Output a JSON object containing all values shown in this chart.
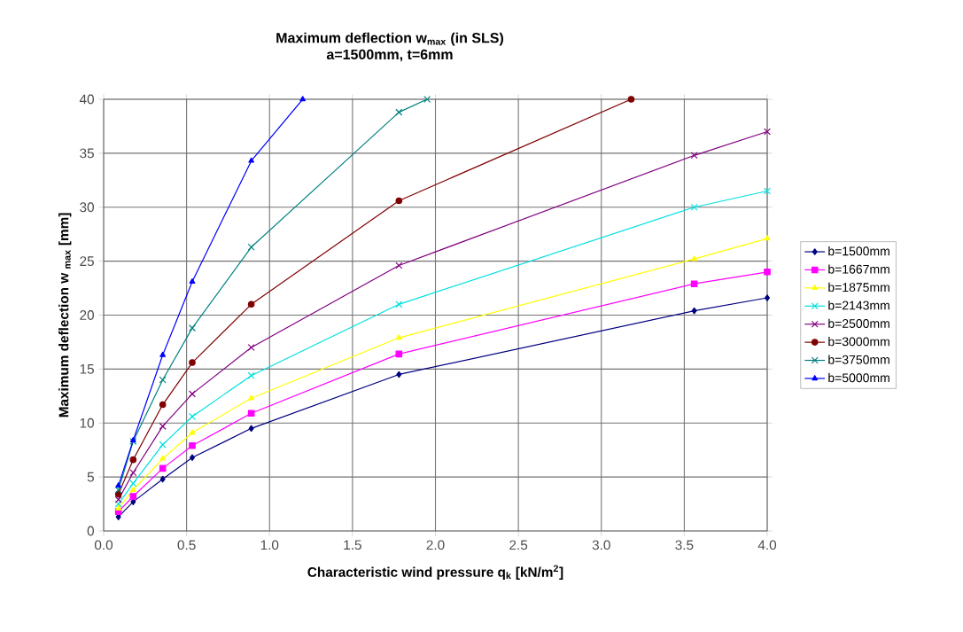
{
  "chart_data": {
    "type": "line",
    "title": "Maximum deflection w$_{max}$ (in SLS)",
    "subtitle": "a=1500mm, t=6mm",
    "xlabel": "Characteristic wind pressure q$_{k}$ [kN/m$^{2}$]",
    "ylabel": "Maximum deflection w $_{max}$ [mm]",
    "xlim": [
      0,
      4
    ],
    "ylim": [
      0,
      40
    ],
    "xticks": [
      {
        "value": 0,
        "label": "0.0"
      },
      {
        "value": 0.5,
        "label": "0.5"
      },
      {
        "value": 1,
        "label": "1.0"
      },
      {
        "value": 1.5,
        "label": "1.5"
      },
      {
        "value": 2,
        "label": "2.0"
      },
      {
        "value": 2.5,
        "label": "2.5"
      },
      {
        "value": 3,
        "label": "3.0"
      },
      {
        "value": 3.5,
        "label": "3.5"
      },
      {
        "value": 4,
        "label": "4.0"
      }
    ],
    "yticks": [
      0,
      5,
      10,
      15,
      20,
      25,
      30,
      35,
      40
    ],
    "grid": true,
    "legend": "right",
    "line_style": "solid",
    "series": [
      {
        "name": "b=1500mm",
        "color": "#000080",
        "marker": "diamond",
        "x": [
          0.089,
          0.178,
          0.356,
          0.534,
          0.89,
          1.78,
          3.56,
          4.0
        ],
        "values": [
          1.3,
          2.7,
          4.8,
          6.8,
          9.5,
          14.5,
          20.4,
          21.6
        ]
      },
      {
        "name": "b=1667mm",
        "color": "#ff00ff",
        "marker": "square",
        "x": [
          0.089,
          0.178,
          0.356,
          0.534,
          0.89,
          1.78,
          3.56,
          4.0
        ],
        "values": [
          1.8,
          3.2,
          5.8,
          7.9,
          10.9,
          16.4,
          22.9,
          24.0
        ]
      },
      {
        "name": "b=1875mm",
        "color": "#ffff00",
        "marker": "triangle",
        "x": [
          0.089,
          0.178,
          0.356,
          0.534,
          0.89,
          1.78,
          3.56,
          4.0
        ],
        "values": [
          2.1,
          3.8,
          6.7,
          9.1,
          12.3,
          17.9,
          25.2,
          27.1
        ]
      },
      {
        "name": "b=2143mm",
        "color": "#00e0e0",
        "marker": "cross",
        "x": [
          0.089,
          0.178,
          0.356,
          0.534,
          0.89,
          1.78,
          3.56,
          4.0
        ],
        "values": [
          2.5,
          4.4,
          8.0,
          10.6,
          14.4,
          21.0,
          30.0,
          31.5
        ]
      },
      {
        "name": "b=2500mm",
        "color": "#800080",
        "marker": "cross",
        "x": [
          0.089,
          0.178,
          0.356,
          0.534,
          0.89,
          1.78,
          3.56,
          4.0
        ],
        "values": [
          2.9,
          5.4,
          9.7,
          12.7,
          17.0,
          24.6,
          34.8,
          37.0
        ]
      },
      {
        "name": "b=3000mm",
        "color": "#800000",
        "marker": "circle",
        "x": [
          0.089,
          0.178,
          0.356,
          0.534,
          0.89,
          1.78,
          3.18
        ],
        "values": [
          3.4,
          6.6,
          11.7,
          15.6,
          21.0,
          30.6,
          40.0
        ]
      },
      {
        "name": "b=3750mm",
        "color": "#008080",
        "marker": "cross",
        "x": [
          0.089,
          0.178,
          0.356,
          0.534,
          0.89,
          1.78,
          1.95
        ],
        "values": [
          3.8,
          8.3,
          14.0,
          18.8,
          26.3,
          38.8,
          40.0
        ]
      },
      {
        "name": "b=5000mm",
        "color": "#0000ff",
        "marker": "triangle",
        "x": [
          0.089,
          0.178,
          0.356,
          0.534,
          0.89,
          1.2
        ],
        "values": [
          4.2,
          8.4,
          16.3,
          23.1,
          34.3,
          40.0
        ]
      }
    ]
  }
}
